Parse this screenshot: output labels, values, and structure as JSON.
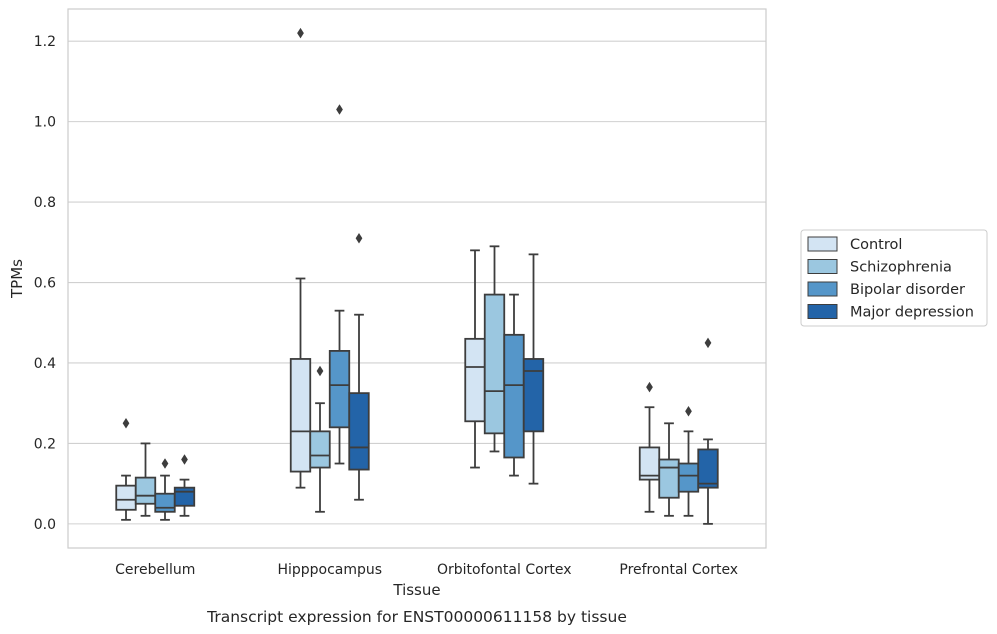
{
  "chart_data": {
    "type": "box",
    "title": "",
    "caption": "Transcript expression for ENST00000611158 by tissue",
    "xlabel": "Tissue",
    "ylabel": "TPMs",
    "ylim": [
      -0.06,
      1.28
    ],
    "yticks": [
      "0.0",
      "0.2",
      "0.4",
      "0.6",
      "0.8",
      "1.0",
      "1.2"
    ],
    "ytick_values": [
      0.0,
      0.2,
      0.4,
      0.6,
      0.8,
      1.0,
      1.2
    ],
    "grid": "horizontal",
    "legend_position": "right",
    "categories": [
      "Cerebellum",
      "Hipppocampus",
      "Orbitofontal Cortex",
      "Prefrontal Cortex"
    ],
    "series": [
      {
        "name": "Control",
        "color": "#d3e4f3",
        "boxes": [
          {
            "whislo": 0.01,
            "q1": 0.035,
            "med": 0.06,
            "q3": 0.095,
            "whishi": 0.12,
            "fliers": [
              0.25
            ]
          },
          {
            "whislo": 0.09,
            "q1": 0.13,
            "med": 0.23,
            "q3": 0.41,
            "whishi": 0.61,
            "fliers": [
              1.22
            ]
          },
          {
            "whislo": 0.14,
            "q1": 0.255,
            "med": 0.39,
            "q3": 0.46,
            "whishi": 0.68,
            "fliers": []
          },
          {
            "whislo": 0.03,
            "q1": 0.11,
            "med": 0.12,
            "q3": 0.19,
            "whishi": 0.29,
            "fliers": [
              0.34
            ]
          }
        ]
      },
      {
        "name": "Schizophrenia",
        "color": "#9bc7e0",
        "boxes": [
          {
            "whislo": 0.02,
            "q1": 0.05,
            "med": 0.07,
            "q3": 0.115,
            "whishi": 0.2,
            "fliers": []
          },
          {
            "whislo": 0.03,
            "q1": 0.14,
            "med": 0.17,
            "q3": 0.23,
            "whishi": 0.3,
            "fliers": [
              0.38
            ]
          },
          {
            "whislo": 0.18,
            "q1": 0.225,
            "med": 0.33,
            "q3": 0.57,
            "whishi": 0.69,
            "fliers": []
          },
          {
            "whislo": 0.02,
            "q1": 0.065,
            "med": 0.14,
            "q3": 0.16,
            "whishi": 0.25,
            "fliers": []
          }
        ]
      },
      {
        "name": "Bipolar disorder",
        "color": "#5596c9",
        "boxes": [
          {
            "whislo": 0.01,
            "q1": 0.03,
            "med": 0.04,
            "q3": 0.075,
            "whishi": 0.12,
            "fliers": [
              0.15
            ]
          },
          {
            "whislo": 0.15,
            "q1": 0.24,
            "med": 0.345,
            "q3": 0.43,
            "whishi": 0.53,
            "fliers": [
              1.03
            ]
          },
          {
            "whislo": 0.12,
            "q1": 0.165,
            "med": 0.345,
            "q3": 0.47,
            "whishi": 0.57,
            "fliers": []
          },
          {
            "whislo": 0.02,
            "q1": 0.08,
            "med": 0.12,
            "q3": 0.15,
            "whishi": 0.23,
            "fliers": [
              0.28
            ]
          }
        ]
      },
      {
        "name": "Major depression",
        "color": "#2364a8",
        "boxes": [
          {
            "whislo": 0.02,
            "q1": 0.045,
            "med": 0.08,
            "q3": 0.09,
            "whishi": 0.11,
            "fliers": [
              0.16
            ]
          },
          {
            "whislo": 0.06,
            "q1": 0.135,
            "med": 0.19,
            "q3": 0.325,
            "whishi": 0.52,
            "fliers": [
              0.71
            ]
          },
          {
            "whislo": 0.1,
            "q1": 0.23,
            "med": 0.38,
            "q3": 0.41,
            "whishi": 0.67,
            "fliers": []
          },
          {
            "whislo": 0.0,
            "q1": 0.09,
            "med": 0.1,
            "q3": 0.185,
            "whishi": 0.21,
            "fliers": [
              0.45
            ]
          }
        ]
      }
    ]
  }
}
